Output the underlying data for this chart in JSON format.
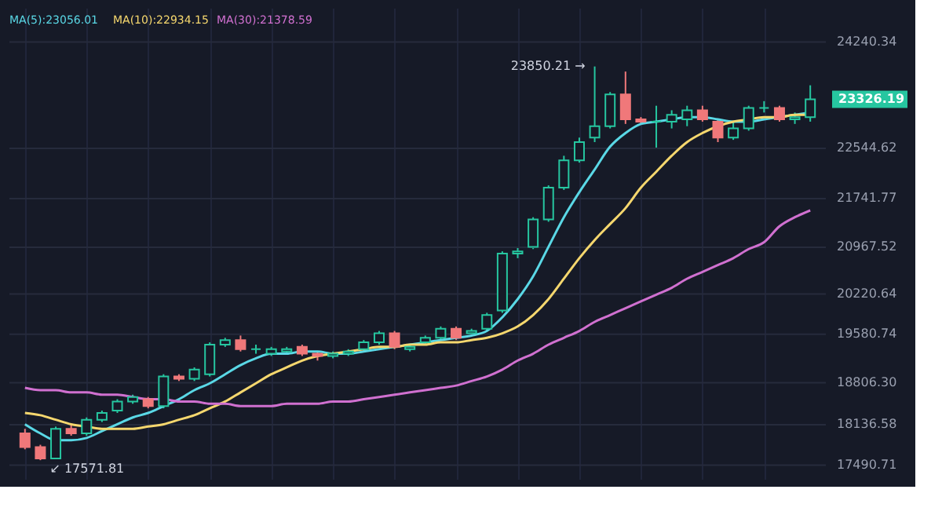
{
  "chart_data": {
    "type": "candlestick",
    "categories": [
      null,
      null,
      null,
      null,
      null,
      null,
      null,
      null,
      null,
      null,
      null,
      null,
      null,
      null,
      null,
      null,
      null,
      null,
      null,
      null,
      null,
      null,
      null,
      null,
      null,
      null,
      null,
      null,
      null,
      null,
      null,
      null,
      null,
      null,
      null,
      null,
      null,
      null,
      null,
      null,
      null,
      null,
      null,
      null,
      null,
      null,
      null,
      null,
      null,
      null,
      null,
      null
    ],
    "ohlc": [
      [
        17999,
        18071,
        17745,
        17781
      ],
      [
        17781,
        17817,
        17571.81,
        17600
      ],
      [
        17600,
        18107,
        17600,
        18071
      ],
      [
        18071,
        18144,
        17962,
        17999
      ],
      [
        17999,
        18253,
        17962,
        18216
      ],
      [
        18216,
        18362,
        18180,
        18325
      ],
      [
        18362,
        18543,
        18325,
        18507
      ],
      [
        18507,
        18616,
        18471,
        18579
      ],
      [
        18543,
        18579,
        18398,
        18434
      ],
      [
        18434,
        18942,
        18398,
        18906
      ],
      [
        18906,
        18942,
        18834,
        18870
      ],
      [
        18870,
        19051,
        18834,
        19015
      ],
      [
        18942,
        19450,
        18906,
        19414
      ],
      [
        19414,
        19523,
        19378,
        19487
      ],
      [
        19487,
        19559,
        19305,
        19341
      ],
      [
        19341,
        19414,
        19269,
        19341
      ],
      [
        19269,
        19378,
        19233,
        19341
      ],
      [
        19305,
        19378,
        19269,
        19341
      ],
      [
        19378,
        19414,
        19233,
        19269
      ],
      [
        19269,
        19305,
        19160,
        19233
      ],
      [
        19233,
        19305,
        19196,
        19269
      ],
      [
        19269,
        19341,
        19233,
        19305
      ],
      [
        19341,
        19487,
        19305,
        19450
      ],
      [
        19450,
        19632,
        19414,
        19595
      ],
      [
        19595,
        19632,
        19341,
        19378
      ],
      [
        19341,
        19414,
        19305,
        19378
      ],
      [
        19450,
        19559,
        19414,
        19523
      ],
      [
        19523,
        19704,
        19487,
        19668
      ],
      [
        19668,
        19704,
        19487,
        19523
      ],
      [
        19595,
        19668,
        19559,
        19632
      ],
      [
        19668,
        19922,
        19632,
        19886
      ],
      [
        19958,
        20902,
        19922,
        20866
      ],
      [
        20866,
        20974,
        20793,
        20902
      ],
      [
        20974,
        21446,
        20938,
        21410
      ],
      [
        21410,
        21954,
        21374,
        21918
      ],
      [
        21918,
        22426,
        21882,
        22354
      ],
      [
        22354,
        22716,
        22317,
        22644
      ],
      [
        22716,
        23850.21,
        22644,
        22898
      ],
      [
        22898,
        23442,
        22862,
        23406
      ],
      [
        23406,
        23769,
        22934,
        23007
      ],
      [
        23007,
        23043,
        22934,
        22970
      ],
      [
        22970,
        23224,
        22535,
        22970
      ],
      [
        22970,
        23152,
        22862,
        23079
      ],
      [
        23007,
        23224,
        22898,
        23152
      ],
      [
        23152,
        23224,
        22970,
        23007
      ],
      [
        22970,
        23007,
        22644,
        22716
      ],
      [
        22716,
        22970,
        22680,
        22862
      ],
      [
        22862,
        23224,
        22826,
        23188
      ],
      [
        23188,
        23297,
        23116,
        23188
      ],
      [
        23188,
        23224,
        22970,
        23007
      ],
      [
        23007,
        23116,
        22934,
        23043
      ],
      [
        23043,
        23550,
        22970,
        23326.19
      ]
    ],
    "colors": [
      "#f0787a",
      "#f0787a",
      "#26c6a0",
      "#f0787a",
      "#26c6a0",
      "#26c6a0",
      "#26c6a0",
      "#26c6a0",
      "#f0787a",
      "#26c6a0",
      "#f0787a",
      "#26c6a0",
      "#26c6a0",
      "#26c6a0",
      "#f0787a",
      "#26c6a0",
      "#26c6a0",
      "#26c6a0",
      "#f0787a",
      "#f0787a",
      "#26c6a0",
      "#26c6a0",
      "#26c6a0",
      "#26c6a0",
      "#f0787a",
      "#26c6a0",
      "#26c6a0",
      "#26c6a0",
      "#f0787a",
      "#26c6a0",
      "#26c6a0",
      "#26c6a0",
      "#26c6a0",
      "#26c6a0",
      "#26c6a0",
      "#26c6a0",
      "#26c6a0",
      "#26c6a0",
      "#26c6a0",
      "#f0787a",
      "#f0787a",
      "#26c6a0",
      "#26c6a0",
      "#26c6a0",
      "#f0787a",
      "#f0787a",
      "#26c6a0",
      "#26c6a0",
      "#26c6a0",
      "#f0787a",
      "#26c6a0",
      "#26c6a0"
    ],
    "series": [
      {
        "name": "MA(5):23056.01",
        "type": "line",
        "color": "#5ad8e6",
        "values": [
          18144,
          17999,
          17890,
          17890,
          17926,
          18035,
          18144,
          18253,
          18325,
          18434,
          18543,
          18688,
          18797,
          18942,
          19087,
          19196,
          19269,
          19269,
          19305,
          19305,
          19269,
          19269,
          19305,
          19341,
          19378,
          19414,
          19450,
          19487,
          19523,
          19559,
          19632,
          19850,
          20140,
          20503,
          20974,
          21446,
          21845,
          22208,
          22571,
          22789,
          22934,
          22970,
          23007,
          23043,
          23043,
          23007,
          22970,
          22970,
          23007,
          23043,
          23079,
          23116
        ]
      },
      {
        "name": "MA(10):22934.15",
        "type": "line",
        "color": "#f5d76e",
        "values": [
          18325,
          18289,
          18216,
          18144,
          18108,
          18071,
          18071,
          18071,
          18108,
          18144,
          18216,
          18289,
          18398,
          18507,
          18652,
          18797,
          18942,
          19051,
          19160,
          19233,
          19269,
          19305,
          19341,
          19378,
          19378,
          19414,
          19414,
          19450,
          19450,
          19487,
          19523,
          19595,
          19704,
          19886,
          20140,
          20466,
          20793,
          21083,
          21337,
          21591,
          21918,
          22172,
          22426,
          22644,
          22789,
          22898,
          22970,
          23007,
          23043,
          23043,
          23079,
          23079
        ]
      },
      {
        "name": "MA(30):21378.59",
        "type": "line",
        "color": "#d070d0",
        "values": [
          18725,
          18688,
          18688,
          18652,
          18652,
          18616,
          18616,
          18579,
          18543,
          18543,
          18507,
          18507,
          18471,
          18471,
          18434,
          18434,
          18434,
          18471,
          18471,
          18471,
          18507,
          18507,
          18543,
          18579,
          18616,
          18652,
          18688,
          18725,
          18761,
          18833,
          18906,
          19015,
          19160,
          19269,
          19414,
          19523,
          19632,
          19777,
          19886,
          19995,
          20104,
          20212,
          20321,
          20466,
          20575,
          20684,
          20793,
          20938,
          21047,
          21301,
          21446,
          21555
        ]
      }
    ],
    "ylim": [
      17273,
      24785
    ],
    "yticks": [
      17490.71,
      18136.58,
      {
        "value": 18806.3,
        "label": "18806.30"
      },
      19580.74,
      20220.64,
      20967.52,
      21741.77,
      22544.62,
      24240.34
    ],
    "annotations": [
      "23850.21 →",
      "↙ 17571.81",
      "23326.19"
    ],
    "grid": true,
    "legend": "top left",
    "tick_labels": "y"
  }
}
